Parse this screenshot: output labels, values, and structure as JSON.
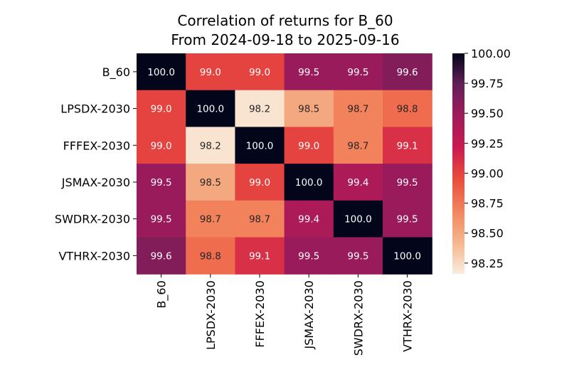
{
  "chart_data": {
    "type": "heatmap",
    "title": "Correlation of returns for B_60",
    "subtitle": "From 2024-09-18 to 2025-09-16",
    "row_labels": [
      "B_60",
      "LPSDX-2030",
      "FFFEX-2030",
      "JSMAX-2030",
      "SWDRX-2030",
      "VTHRX-2030"
    ],
    "col_labels": [
      "B_60",
      "LPSDX-2030",
      "FFFEX-2030",
      "JSMAX-2030",
      "SWDRX-2030",
      "VTHRX-2030"
    ],
    "values": [
      [
        100.0,
        99.0,
        99.0,
        99.5,
        99.5,
        99.6
      ],
      [
        99.0,
        100.0,
        98.2,
        98.5,
        98.7,
        98.8
      ],
      [
        99.0,
        98.2,
        100.0,
        99.0,
        98.7,
        99.1
      ],
      [
        99.5,
        98.5,
        99.0,
        100.0,
        99.4,
        99.5
      ],
      [
        99.5,
        98.7,
        98.7,
        99.4,
        100.0,
        99.5
      ],
      [
        99.6,
        98.8,
        99.1,
        99.5,
        99.5,
        100.0
      ]
    ],
    "value_format": "0.0",
    "colorbar": {
      "ticks": [
        "98.25",
        "98.50",
        "98.75",
        "99.00",
        "99.25",
        "99.50",
        "99.75",
        "100.00"
      ],
      "range": [
        98.16,
        100.0
      ],
      "colormap": "rocket_r"
    }
  }
}
